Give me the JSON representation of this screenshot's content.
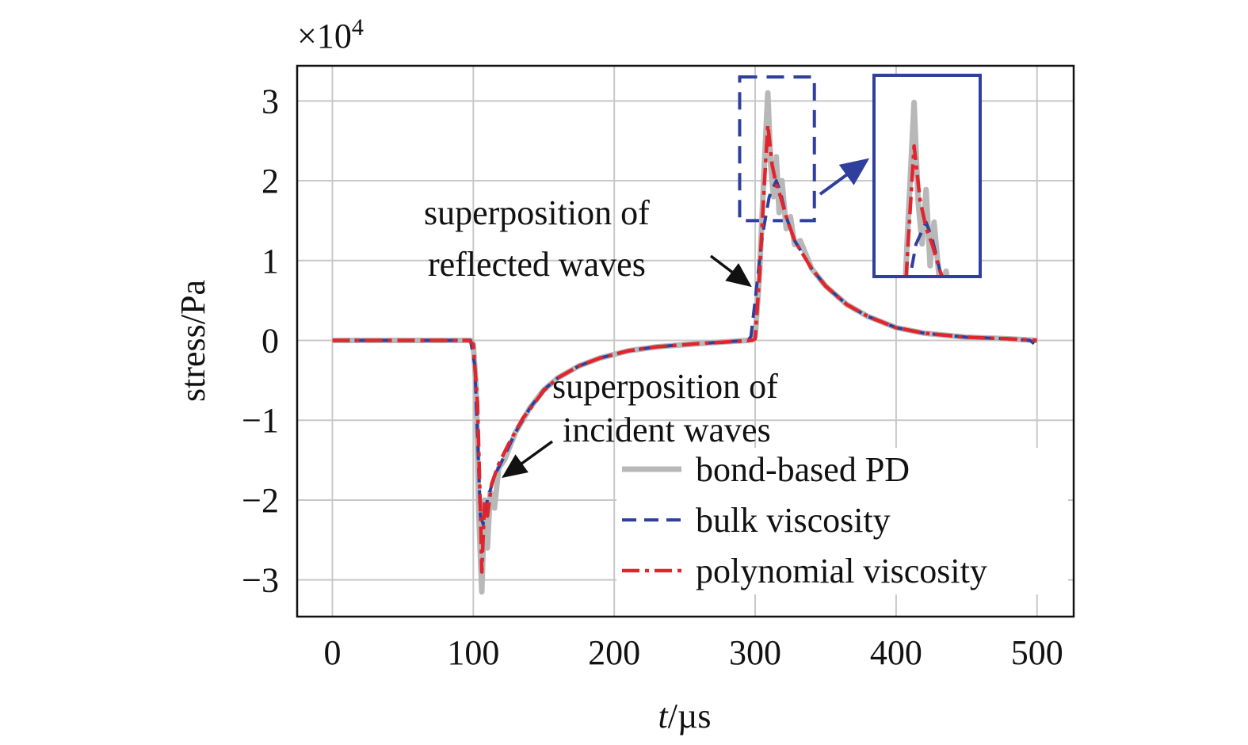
{
  "chart_data": {
    "type": "line",
    "title": "",
    "xlabel_italic": "t",
    "xlabel_rest": "/µs",
    "ylabel": "stress/Pa",
    "y_multiplier": "×10",
    "y_multiplier_exp": "4",
    "xlim": [
      -25,
      526
    ],
    "ylim": [
      -3.46,
      3.44
    ],
    "xticks": [
      0,
      100,
      200,
      300,
      400,
      500
    ],
    "yticks": [
      3,
      2,
      1,
      0,
      -1,
      -2,
      -3
    ],
    "ytick_labels": [
      "3",
      "2",
      "1",
      "0",
      "−1",
      "−2",
      "−3"
    ],
    "grid": true,
    "legend_position": "bottom-right",
    "annotations": {
      "reflected_line1": "superposition of",
      "reflected_line2": "reflected waves",
      "incident_line1": "superposition of",
      "incident_line2": "incident waves"
    },
    "zoom_region": {
      "x": [
        289,
        342
      ],
      "y": [
        1.5,
        3.3
      ]
    },
    "series": [
      {
        "name": "bond-based PD",
        "color": "#b8b8b8",
        "style": "solid",
        "points": [
          [
            0,
            0
          ],
          [
            98,
            0
          ],
          [
            100,
            -0.05
          ],
          [
            102,
            -0.6
          ],
          [
            104,
            -2.2
          ],
          [
            106,
            -3.15
          ],
          [
            108,
            -2.0
          ],
          [
            110,
            -2.6
          ],
          [
            112,
            -1.9
          ],
          [
            115,
            -2.1
          ],
          [
            118,
            -1.6
          ],
          [
            122,
            -1.5
          ],
          [
            130,
            -1.15
          ],
          [
            140,
            -0.85
          ],
          [
            150,
            -0.62
          ],
          [
            160,
            -0.47
          ],
          [
            175,
            -0.32
          ],
          [
            190,
            -0.22
          ],
          [
            210,
            -0.13
          ],
          [
            230,
            -0.08
          ],
          [
            260,
            -0.04
          ],
          [
            295,
            0
          ],
          [
            300,
            0.05
          ],
          [
            303,
            0.8
          ],
          [
            306,
            2.0
          ],
          [
            309,
            3.1
          ],
          [
            311,
            2.2
          ],
          [
            313,
            1.8
          ],
          [
            315,
            2.3
          ],
          [
            317,
            1.6
          ],
          [
            319,
            2.0
          ],
          [
            322,
            1.4
          ],
          [
            325,
            1.55
          ],
          [
            328,
            1.2
          ],
          [
            332,
            1.25
          ],
          [
            340,
            0.9
          ],
          [
            350,
            0.68
          ],
          [
            365,
            0.45
          ],
          [
            380,
            0.3
          ],
          [
            400,
            0.16
          ],
          [
            420,
            0.09
          ],
          [
            450,
            0.04
          ],
          [
            480,
            0.02
          ],
          [
            500,
            0.0
          ]
        ]
      },
      {
        "name": "bulk viscosity",
        "color": "#2e3f9e",
        "style": "dashed",
        "points": [
          [
            0,
            0
          ],
          [
            98,
            0
          ],
          [
            101,
            -0.3
          ],
          [
            103,
            -1.2
          ],
          [
            105,
            -2.2
          ],
          [
            107,
            -2.3
          ],
          [
            110,
            -2.0
          ],
          [
            115,
            -1.7
          ],
          [
            122,
            -1.45
          ],
          [
            130,
            -1.15
          ],
          [
            140,
            -0.85
          ],
          [
            150,
            -0.62
          ],
          [
            160,
            -0.47
          ],
          [
            175,
            -0.32
          ],
          [
            190,
            -0.22
          ],
          [
            210,
            -0.13
          ],
          [
            230,
            -0.08
          ],
          [
            260,
            -0.04
          ],
          [
            295,
            0
          ],
          [
            297,
            0.05
          ],
          [
            300,
            0.5
          ],
          [
            305,
            1.3
          ],
          [
            310,
            1.8
          ],
          [
            315,
            2.0
          ],
          [
            318,
            1.85
          ],
          [
            322,
            1.55
          ],
          [
            328,
            1.25
          ],
          [
            340,
            0.9
          ],
          [
            350,
            0.68
          ],
          [
            365,
            0.45
          ],
          [
            380,
            0.3
          ],
          [
            400,
            0.16
          ],
          [
            420,
            0.09
          ],
          [
            450,
            0.04
          ],
          [
            480,
            0.02
          ],
          [
            495,
            0
          ],
          [
            500,
            -0.07
          ]
        ]
      },
      {
        "name": "polynomial viscosity",
        "color": "#e0262c",
        "style": "dashdot",
        "points": [
          [
            0,
            0
          ],
          [
            97,
            0
          ],
          [
            100,
            -0.05
          ],
          [
            103,
            -0.8
          ],
          [
            105,
            -2.1
          ],
          [
            106,
            -2.9
          ],
          [
            108,
            -2.0
          ],
          [
            110,
            -2.2
          ],
          [
            113,
            -1.8
          ],
          [
            118,
            -1.55
          ],
          [
            125,
            -1.3
          ],
          [
            135,
            -0.98
          ],
          [
            150,
            -0.63
          ],
          [
            160,
            -0.47
          ],
          [
            175,
            -0.32
          ],
          [
            190,
            -0.22
          ],
          [
            210,
            -0.13
          ],
          [
            230,
            -0.08
          ],
          [
            260,
            -0.04
          ],
          [
            298,
            0
          ],
          [
            300,
            0.02
          ],
          [
            303,
            0.8
          ],
          [
            306,
            1.8
          ],
          [
            309,
            2.7
          ],
          [
            312,
            2.2
          ],
          [
            315,
            1.95
          ],
          [
            318,
            1.8
          ],
          [
            322,
            1.55
          ],
          [
            328,
            1.25
          ],
          [
            340,
            0.9
          ],
          [
            350,
            0.68
          ],
          [
            365,
            0.45
          ],
          [
            380,
            0.3
          ],
          [
            400,
            0.16
          ],
          [
            420,
            0.09
          ],
          [
            450,
            0.04
          ],
          [
            480,
            0.02
          ],
          [
            500,
            0.0
          ]
        ]
      }
    ]
  }
}
